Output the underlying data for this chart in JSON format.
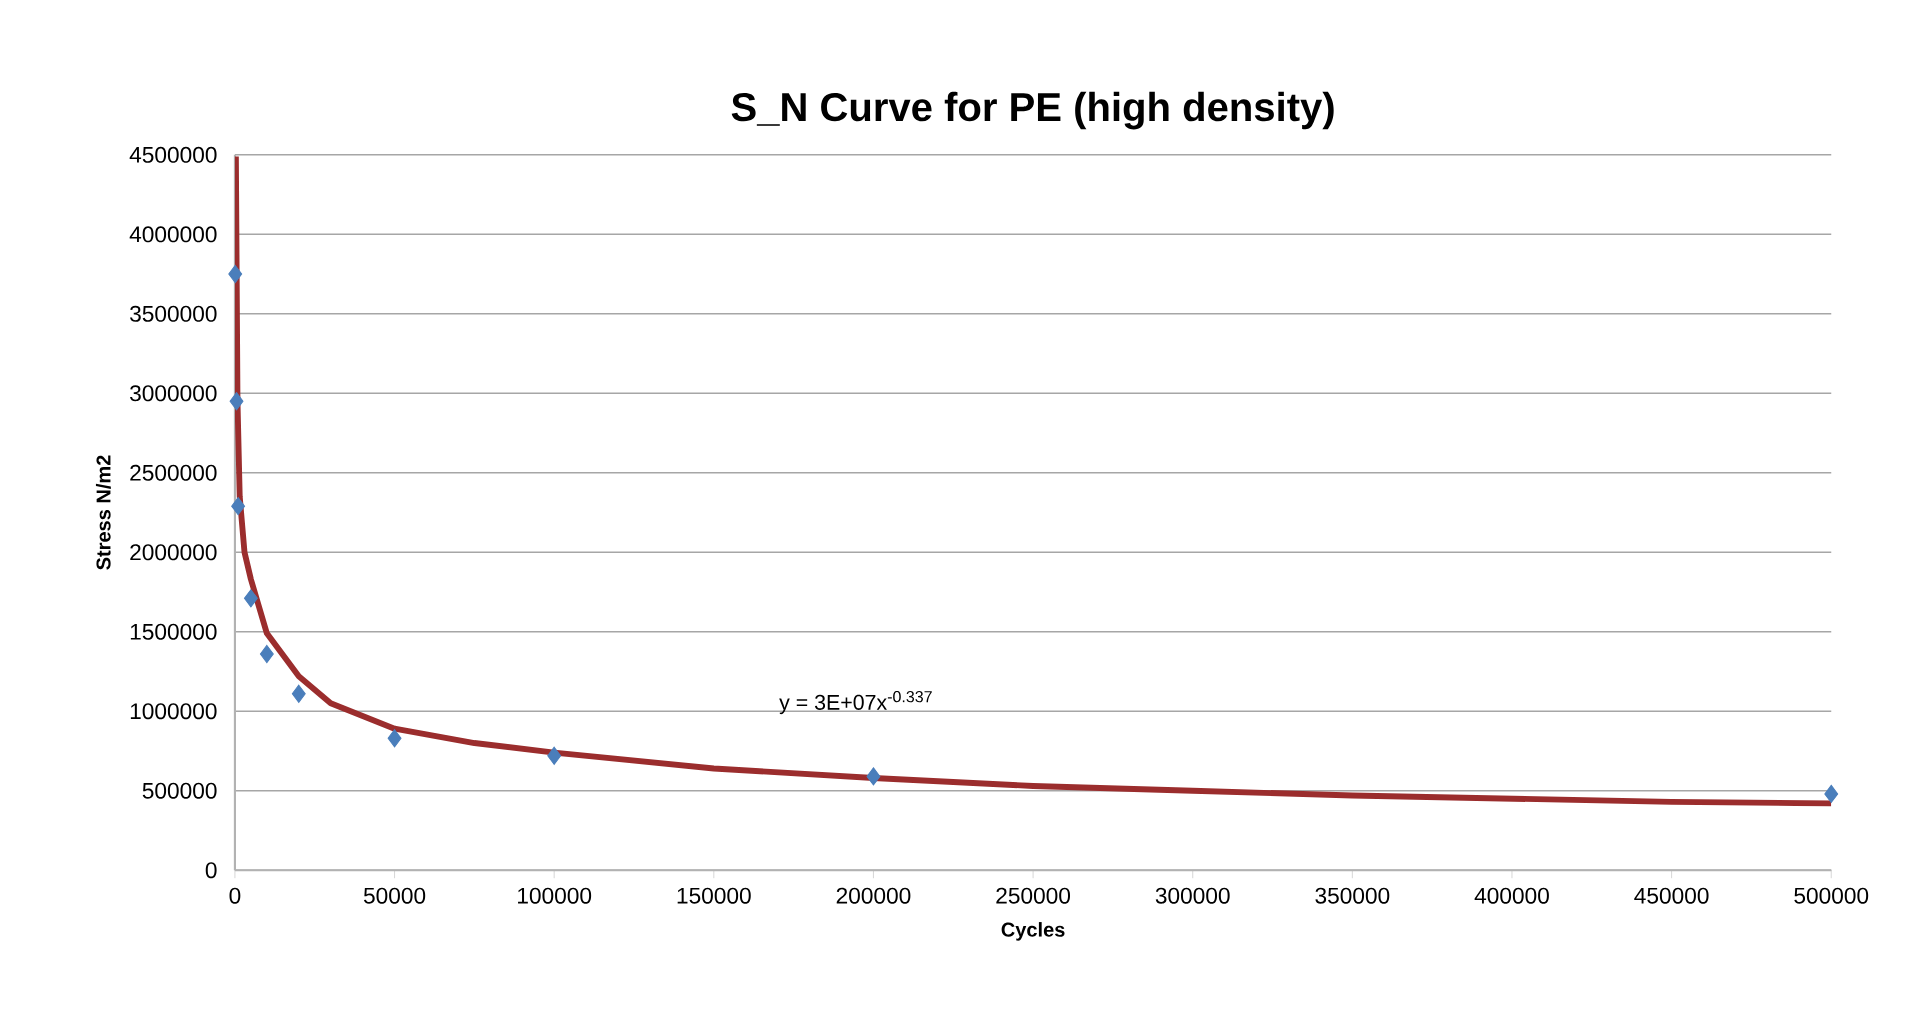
{
  "chart_data": {
    "type": "scatter",
    "title": "S_N Curve for PE (high density)",
    "xlabel": "Cycles",
    "ylabel": "Stress N/m2",
    "xlim": [
      0,
      500000
    ],
    "xticks": [
      0,
      50000,
      100000,
      150000,
      200000,
      250000,
      300000,
      350000,
      400000,
      450000,
      500000
    ],
    "ylim": [
      0,
      4500000
    ],
    "yticks": [
      0,
      500000,
      1000000,
      1500000,
      2000000,
      2500000,
      3000000,
      3500000,
      4000000,
      4500000
    ],
    "grid": "y",
    "legend": false,
    "marker": "diamond",
    "series": [
      {
        "type": "scatter",
        "color": "#4a7ebb",
        "x": [
          100,
          500,
          1000,
          5000,
          10000,
          20000,
          50000,
          100000,
          200000,
          500000
        ],
        "values": [
          3750000,
          2950000,
          2290000,
          1710000,
          1360000,
          1110000,
          830000,
          720000,
          590000,
          480000
        ]
      },
      {
        "type": "line",
        "color": "#9b2d2d",
        "marker": "none",
        "x": [
          300,
          800,
          1500,
          3000,
          5000,
          10000,
          20000,
          30000,
          50000,
          75000,
          100000,
          150000,
          200000,
          250000,
          300000,
          350000,
          400000,
          450000,
          500000
        ],
        "values": [
          4490000,
          2950000,
          2350000,
          2000000,
          1830000,
          1490000,
          1220000,
          1050000,
          890000,
          800000,
          740000,
          640000,
          580000,
          530000,
          500000,
          470000,
          450000,
          430000,
          420000
        ]
      }
    ],
    "annotations": [
      "y = 3E+07x$^{-0.337}$"
    ]
  }
}
